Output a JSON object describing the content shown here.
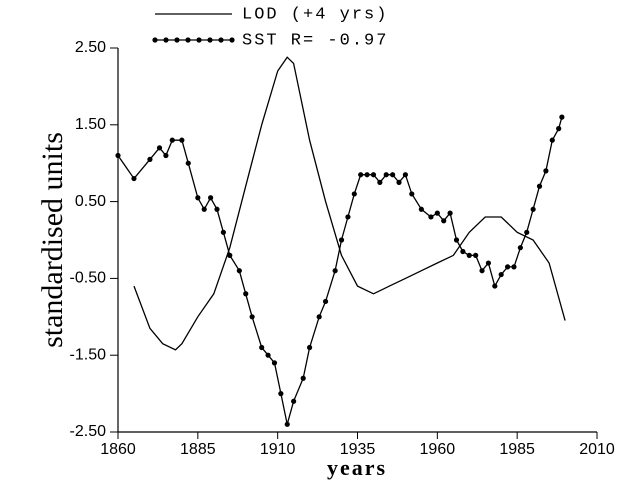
{
  "chart_data": {
    "type": "line",
    "x_label": "years",
    "y_label": "standardised units",
    "xlim": [
      1860,
      2010
    ],
    "xticks": [
      1860,
      1885,
      1910,
      1935,
      1960,
      1985,
      2010
    ],
    "ylim": [
      -2.5,
      2.5
    ],
    "yticks": [
      {
        "value": -2.5,
        "label": "-2.50"
      },
      {
        "value": -1.5,
        "label": "-1.50"
      },
      {
        "value": -0.5,
        "label": "-0.50"
      },
      {
        "value": 0.5,
        "label": "0.50"
      },
      {
        "value": 1.5,
        "label": "1.50"
      },
      {
        "value": 2.5,
        "label": "2.50"
      }
    ],
    "series": [
      {
        "name": "LOD (+4 yrs)",
        "color": "#000000",
        "markers": false,
        "x": [
          1865,
          1870,
          1874,
          1878,
          1880,
          1885,
          1890,
          1895,
          1900,
          1905,
          1910,
          1913,
          1915,
          1920,
          1925,
          1930,
          1935,
          1940,
          1945,
          1950,
          1955,
          1960,
          1965,
          1970,
          1975,
          1980,
          1985,
          1990,
          1995,
          2000
        ],
        "values": [
          -0.6,
          -1.15,
          -1.35,
          -1.43,
          -1.35,
          -1.0,
          -0.7,
          -0.1,
          0.7,
          1.5,
          2.2,
          2.38,
          2.3,
          1.3,
          0.5,
          -0.2,
          -0.6,
          -0.7,
          -0.6,
          -0.5,
          -0.4,
          -0.3,
          -0.2,
          0.1,
          0.3,
          0.3,
          0.1,
          0.0,
          -0.3,
          -1.05
        ]
      },
      {
        "name": "SST R= -0.97",
        "color": "#000000",
        "markers": true,
        "x": [
          1860,
          1865,
          1870,
          1873,
          1875,
          1877,
          1880,
          1882,
          1885,
          1887,
          1889,
          1891,
          1893,
          1895,
          1898,
          1900,
          1902,
          1905,
          1907,
          1909,
          1911,
          1913,
          1915,
          1918,
          1920,
          1923,
          1925,
          1928,
          1930,
          1932,
          1934,
          1936,
          1938,
          1940,
          1942,
          1944,
          1946,
          1948,
          1950,
          1952,
          1955,
          1958,
          1960,
          1962,
          1964,
          1966,
          1968,
          1970,
          1972,
          1974,
          1976,
          1978,
          1980,
          1982,
          1984,
          1986,
          1988,
          1990,
          1992,
          1994,
          1996,
          1998,
          1999
        ],
        "values": [
          1.1,
          0.8,
          1.05,
          1.2,
          1.1,
          1.3,
          1.3,
          1.0,
          0.55,
          0.4,
          0.55,
          0.4,
          0.1,
          -0.2,
          -0.4,
          -0.7,
          -1.0,
          -1.4,
          -1.5,
          -1.6,
          -2.0,
          -2.4,
          -2.1,
          -1.8,
          -1.4,
          -1.0,
          -0.8,
          -0.4,
          0.0,
          0.3,
          0.6,
          0.85,
          0.85,
          0.85,
          0.75,
          0.85,
          0.85,
          0.75,
          0.85,
          0.6,
          0.4,
          0.3,
          0.35,
          0.25,
          0.35,
          0.0,
          -0.15,
          -0.2,
          -0.2,
          -0.4,
          -0.3,
          -0.6,
          -0.45,
          -0.35,
          -0.35,
          -0.1,
          0.1,
          0.4,
          0.7,
          0.9,
          1.3,
          1.45,
          1.6
        ]
      }
    ]
  }
}
